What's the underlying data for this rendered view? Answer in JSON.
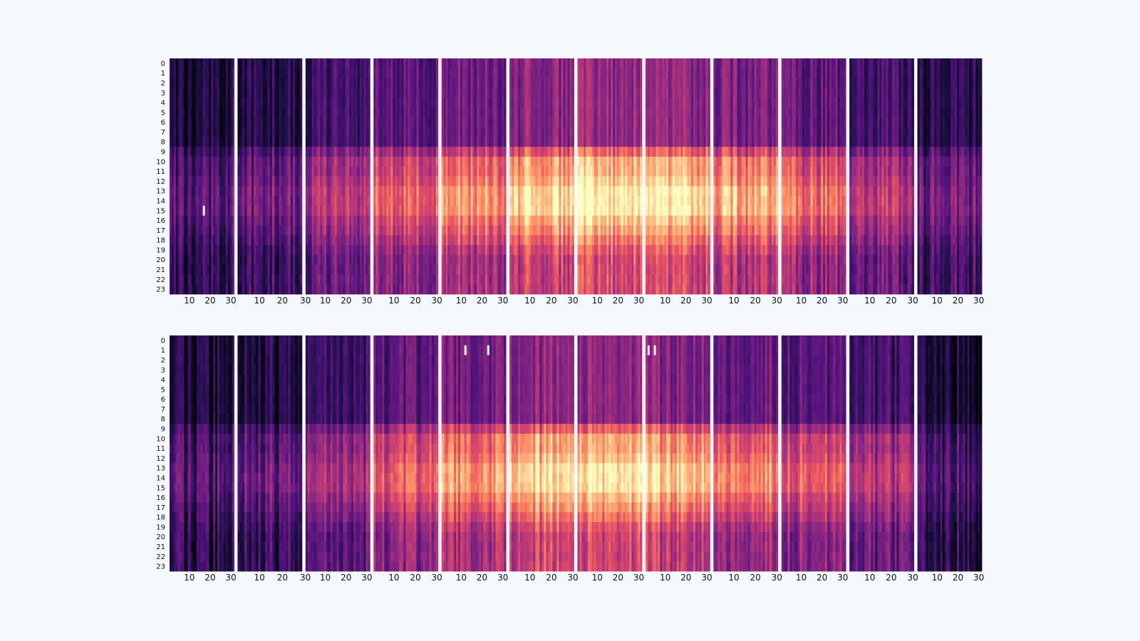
{
  "chart_data": [
    {
      "type": "heatmap",
      "name": "top",
      "colormap": "magma",
      "y_ticks": [
        "0",
        "1",
        "2",
        "3",
        "4",
        "5",
        "6",
        "7",
        "8",
        "9",
        "10",
        "11",
        "12",
        "13",
        "14",
        "15",
        "16",
        "17",
        "18",
        "19",
        "20",
        "21",
        "22",
        "23"
      ],
      "x_tick_labels": [
        "10",
        "20",
        "30"
      ],
      "panel_count": 12,
      "days_per_panel": [
        31,
        28,
        31,
        30,
        31,
        30,
        31,
        31,
        30,
        31,
        30,
        31
      ],
      "panel_intensity": [
        0.22,
        0.28,
        0.38,
        0.5,
        0.62,
        0.72,
        0.78,
        0.74,
        0.64,
        0.54,
        0.4,
        0.26
      ],
      "missing": [
        {
          "panel": 0,
          "day": 16,
          "hour": 15
        }
      ],
      "grid": false,
      "legend": "none"
    },
    {
      "type": "heatmap",
      "name": "bottom",
      "colormap": "magma",
      "y_ticks": [
        "0",
        "1",
        "2",
        "3",
        "4",
        "5",
        "6",
        "7",
        "8",
        "9",
        "10",
        "11",
        "12",
        "13",
        "14",
        "15",
        "16",
        "17",
        "18",
        "19",
        "20",
        "21",
        "22",
        "23"
      ],
      "x_tick_labels": [
        "10",
        "20",
        "30"
      ],
      "panel_count": 12,
      "days_per_panel": [
        31,
        28,
        31,
        30,
        31,
        30,
        31,
        31,
        30,
        31,
        30,
        31
      ],
      "panel_intensity": [
        0.2,
        0.25,
        0.36,
        0.48,
        0.62,
        0.72,
        0.76,
        0.7,
        0.6,
        0.5,
        0.38,
        0.2
      ],
      "missing": [
        {
          "panel": 4,
          "day": 11,
          "hour": 1
        },
        {
          "panel": 4,
          "day": 22,
          "hour": 1
        },
        {
          "panel": 7,
          "day": 1,
          "hour": 1
        },
        {
          "panel": 7,
          "day": 4,
          "hour": 1
        }
      ],
      "grid": false,
      "legend": "none"
    }
  ]
}
